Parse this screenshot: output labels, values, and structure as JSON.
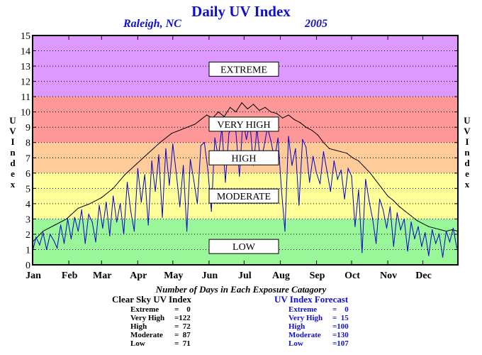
{
  "chart_data": {
    "type": "line",
    "title": "Daily UV Index",
    "location": "Raleigh, NC",
    "year": "2005",
    "ylabel": "UV Index",
    "ylim": [
      0,
      15
    ],
    "yticks": [
      0,
      1,
      2,
      3,
      4,
      5,
      6,
      7,
      8,
      9,
      10,
      11,
      12,
      13,
      14,
      15
    ],
    "xlim": [
      1,
      365
    ],
    "months": [
      {
        "label": "Jan",
        "day": 1
      },
      {
        "label": "Feb",
        "day": 32
      },
      {
        "label": "Mar",
        "day": 60
      },
      {
        "label": "Apr",
        "day": 91
      },
      {
        "label": "May",
        "day": 121
      },
      {
        "label": "Jun",
        "day": 152
      },
      {
        "label": "Jul",
        "day": 182
      },
      {
        "label": "Aug",
        "day": 213
      },
      {
        "label": "Sep",
        "day": 244
      },
      {
        "label": "Oct",
        "day": 274
      },
      {
        "label": "Nov",
        "day": 305
      },
      {
        "label": "Dec",
        "day": 335
      }
    ],
    "grid": true,
    "bands": [
      {
        "label": "LOW",
        "from": 0,
        "to": 3,
        "color": "#99f799",
        "label_y": 1.2
      },
      {
        "label": "MODERATE",
        "from": 3,
        "to": 6,
        "color": "#ffff99",
        "label_y": 4.5
      },
      {
        "label": "HIGH",
        "from": 6,
        "to": 8,
        "color": "#ffcc99",
        "label_y": 7.0
      },
      {
        "label": "VERY HIGH",
        "from": 8,
        "to": 11,
        "color": "#ff9999",
        "label_y": 9.2
      },
      {
        "label": "EXTREME",
        "from": 11,
        "to": 15,
        "color": "#dd99ff",
        "label_y": 12.8
      }
    ],
    "series": [
      {
        "name": "Clear Sky UV Index",
        "color": "#000000",
        "x": [
          1,
          10,
          20,
          30,
          40,
          50,
          60,
          70,
          80,
          90,
          100,
          110,
          120,
          130,
          140,
          150,
          155,
          160,
          165,
          170,
          175,
          180,
          185,
          190,
          195,
          200,
          205,
          210,
          215,
          220,
          225,
          230,
          235,
          240,
          245,
          250,
          255,
          260,
          265,
          270,
          275,
          280,
          285,
          290,
          295,
          300,
          305,
          310,
          315,
          320,
          325,
          330,
          335,
          340,
          345,
          350,
          355,
          360,
          365
        ],
        "values": [
          1.5,
          2.2,
          2.6,
          3.0,
          3.7,
          4.0,
          4.4,
          5.0,
          5.9,
          6.6,
          7.3,
          8.0,
          8.6,
          8.9,
          9.2,
          9.8,
          9.6,
          10.0,
          9.7,
          10.3,
          10.0,
          10.6,
          10.2,
          10.5,
          10.1,
          10.3,
          10.0,
          9.9,
          9.6,
          9.8,
          9.5,
          9.3,
          9.0,
          8.8,
          8.5,
          8.0,
          7.6,
          7.5,
          7.4,
          7.3,
          7.0,
          6.8,
          6.4,
          6.0,
          5.5,
          5.0,
          4.5,
          4.2,
          3.8,
          3.5,
          3.2,
          2.9,
          2.7,
          2.5,
          2.4,
          2.3,
          2.2,
          2.3,
          2.2
        ]
      },
      {
        "name": "UV Index Forecast",
        "color": "#0000cc",
        "x": [
          1,
          4,
          7,
          10,
          13,
          16,
          19,
          22,
          25,
          28,
          31,
          34,
          37,
          40,
          43,
          46,
          49,
          52,
          55,
          58,
          61,
          64,
          67,
          70,
          73,
          76,
          79,
          82,
          85,
          88,
          91,
          94,
          97,
          100,
          103,
          106,
          109,
          112,
          115,
          118,
          121,
          124,
          127,
          130,
          133,
          136,
          139,
          142,
          145,
          148,
          151,
          154,
          157,
          160,
          163,
          166,
          169,
          172,
          175,
          178,
          181,
          184,
          187,
          190,
          193,
          196,
          199,
          202,
          205,
          208,
          211,
          214,
          217,
          220,
          223,
          226,
          229,
          232,
          235,
          238,
          241,
          244,
          247,
          250,
          253,
          256,
          259,
          262,
          265,
          268,
          271,
          274,
          277,
          280,
          283,
          286,
          289,
          292,
          295,
          298,
          301,
          304,
          307,
          310,
          313,
          316,
          319,
          322,
          325,
          328,
          331,
          334,
          337,
          340,
          343,
          346,
          349,
          352,
          355,
          358,
          361,
          364
        ],
        "values": [
          0.9,
          1.8,
          1.3,
          2.1,
          1.0,
          2.0,
          1.6,
          1.1,
          2.6,
          1.4,
          3.0,
          1.7,
          3.1,
          2.2,
          3.6,
          1.4,
          3.3,
          2.8,
          1.5,
          3.9,
          2.4,
          4.1,
          1.9,
          4.5,
          2.8,
          4.0,
          2.0,
          5.4,
          3.5,
          2.2,
          6.3,
          4.1,
          5.9,
          2.6,
          6.8,
          4.8,
          7.2,
          3.1,
          7.6,
          5.2,
          7.9,
          6.0,
          3.8,
          6.5,
          2.2,
          6.9,
          5.5,
          4.0,
          7.8,
          8.0,
          6.2,
          3.5,
          8.3,
          7.0,
          9.0,
          5.4,
          8.6,
          9.1,
          8.7,
          5.8,
          9.5,
          8.2,
          9.3,
          6.5,
          8.9,
          6.8,
          7.7,
          9.0,
          8.1,
          6.9,
          8.3,
          4.9,
          2.2,
          8.4,
          6.5,
          7.6,
          3.9,
          8.2,
          7.7,
          5.4,
          7.1,
          6.0,
          5.3,
          7.4,
          6.1,
          4.8,
          6.8,
          5.6,
          6.2,
          4.3,
          6.3,
          5.8,
          2.5,
          4.9,
          0.8,
          5.6,
          4.2,
          3.0,
          1.4,
          4.3,
          3.6,
          2.4,
          3.8,
          1.2,
          3.4,
          2.3,
          3.0,
          0.9,
          2.8,
          1.7,
          2.5,
          1.2,
          2.1,
          0.6,
          2.3,
          1.4,
          2.0,
          0.5,
          2.2,
          1.5,
          2.4,
          1.1
        ]
      }
    ]
  },
  "summary": {
    "title": "Number of Days in Each Exposure Catagory",
    "clear": {
      "heading": "Clear Sky UV Index",
      "rows": [
        {
          "label": "Extreme",
          "value": "=    0"
        },
        {
          "label": "Very High",
          "value": "=122"
        },
        {
          "label": "High",
          "value": "=  72"
        },
        {
          "label": "Moderate",
          "value": "=  87"
        },
        {
          "label": "Low",
          "value": "=  71"
        }
      ]
    },
    "forecast": {
      "heading": "UV Index Forecast",
      "rows": [
        {
          "label": "Extreme",
          "value": "=    0"
        },
        {
          "label": "Very High",
          "value": "=  15"
        },
        {
          "label": "High",
          "value": "=100"
        },
        {
          "label": "Moderate",
          "value": "=130"
        },
        {
          "label": "Low",
          "value": "=107"
        }
      ]
    }
  }
}
